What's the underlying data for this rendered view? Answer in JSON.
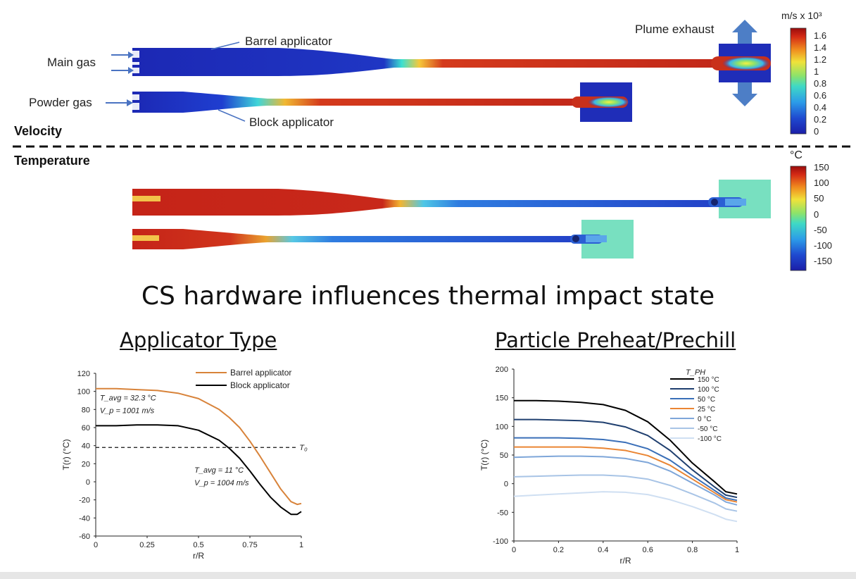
{
  "velocity_panel": {
    "section_label": "Velocity",
    "main_gas_label": "Main gas",
    "powder_gas_label": "Powder gas",
    "barrel_label": "Barrel applicator",
    "block_label": "Block applicator",
    "plume_label": "Plume exhaust",
    "colorbar_unit": "m/s x 10³",
    "colorbar_ticks": [
      "1.6",
      "1.4",
      "1.2",
      "1",
      "0.8",
      "0.6",
      "0.4",
      "0.2",
      "0"
    ]
  },
  "temperature_panel": {
    "section_label": "Temperature",
    "colorbar_unit": "°C",
    "colorbar_ticks": [
      "150",
      "100",
      "50",
      "0",
      "-50",
      "-100",
      "-150"
    ]
  },
  "headline": "CS hardware influences thermal impact state",
  "chart_left_title": "Applicator Type",
  "chart_right_title": "Particle Preheat/Prechill",
  "chart_data": [
    {
      "type": "line",
      "title": "Applicator Type",
      "xlabel": "r/R",
      "ylabel": "T(r) (°C)",
      "xlim": [
        0,
        1
      ],
      "ylim": [
        -60,
        120
      ],
      "xticks": [
        "0",
        "0.25",
        "0.5",
        "0.75",
        "1"
      ],
      "yticks": [
        "120",
        "100",
        "80",
        "60",
        "40",
        "20",
        "0",
        "-20",
        "-40",
        "-60"
      ],
      "x": [
        0,
        0.1,
        0.2,
        0.3,
        0.4,
        0.5,
        0.6,
        0.65,
        0.7,
        0.75,
        0.8,
        0.85,
        0.9,
        0.95,
        0.98,
        1.0
      ],
      "series": [
        {
          "name": "Barrel applicator",
          "color": "#d8833a",
          "values": [
            103,
            103,
            102,
            101,
            98,
            92,
            80,
            71,
            60,
            45,
            28,
            10,
            -8,
            -22,
            -25,
            -24
          ]
        },
        {
          "name": "Block applicator",
          "color": "#000000",
          "values": [
            62,
            62,
            63,
            63,
            62,
            57,
            46,
            37,
            26,
            12,
            -3,
            -17,
            -28,
            -36,
            -36,
            -33
          ]
        }
      ],
      "reference_line": {
        "y": 38,
        "label": "T₀"
      },
      "annotations": [
        {
          "line1": "T_avg = 32.3 °C",
          "line2": "V_p = 1001 m/s"
        },
        {
          "line1": "T_avg = 11 °C",
          "line2": "V_p = 1004 m/s"
        }
      ],
      "legend": "top-right"
    },
    {
      "type": "line",
      "title": "Particle Preheat/Prechill",
      "xlabel": "r/R",
      "ylabel": "T(r) (°C)",
      "xlim": [
        0,
        1
      ],
      "ylim": [
        -100,
        200
      ],
      "xticks": [
        "0",
        "0.2",
        "0.4",
        "0.6",
        "0.8",
        "1"
      ],
      "yticks": [
        "200",
        "150",
        "100",
        "50",
        "0",
        "-50",
        "-100"
      ],
      "legend_title": "T_PH",
      "x": [
        0,
        0.1,
        0.2,
        0.3,
        0.4,
        0.5,
        0.6,
        0.7,
        0.8,
        0.9,
        0.95,
        1.0
      ],
      "series": [
        {
          "name": "150 °C",
          "color": "#000000",
          "values": [
            145,
            145,
            144,
            142,
            138,
            128,
            108,
            76,
            36,
            3,
            -14,
            -18
          ]
        },
        {
          "name": "100 °C",
          "color": "#1f3f6f",
          "values": [
            112,
            112,
            111,
            110,
            107,
            99,
            84,
            58,
            24,
            -6,
            -20,
            -24
          ]
        },
        {
          "name": "50 °C",
          "color": "#3a6fb8",
          "values": [
            80,
            80,
            80,
            79,
            77,
            72,
            61,
            41,
            14,
            -12,
            -25,
            -29
          ]
        },
        {
          "name": "25 °C",
          "color": "#ea8533",
          "values": [
            64,
            64,
            64,
            64,
            62,
            58,
            49,
            32,
            8,
            -16,
            -28,
            -32
          ]
        },
        {
          "name": "0 °C",
          "color": "#7ea6d9",
          "values": [
            46,
            47,
            48,
            48,
            47,
            44,
            37,
            22,
            1,
            -20,
            -32,
            -37
          ]
        },
        {
          "name": "-50 °C",
          "color": "#a8c4e6",
          "values": [
            12,
            13,
            14,
            15,
            15,
            13,
            8,
            -3,
            -18,
            -34,
            -44,
            -48
          ]
        },
        {
          "name": "-100 °C",
          "color": "#cfdff2",
          "values": [
            -22,
            -20,
            -18,
            -16,
            -14,
            -15,
            -19,
            -28,
            -40,
            -54,
            -62,
            -66
          ]
        }
      ],
      "legend": "top-right"
    }
  ]
}
